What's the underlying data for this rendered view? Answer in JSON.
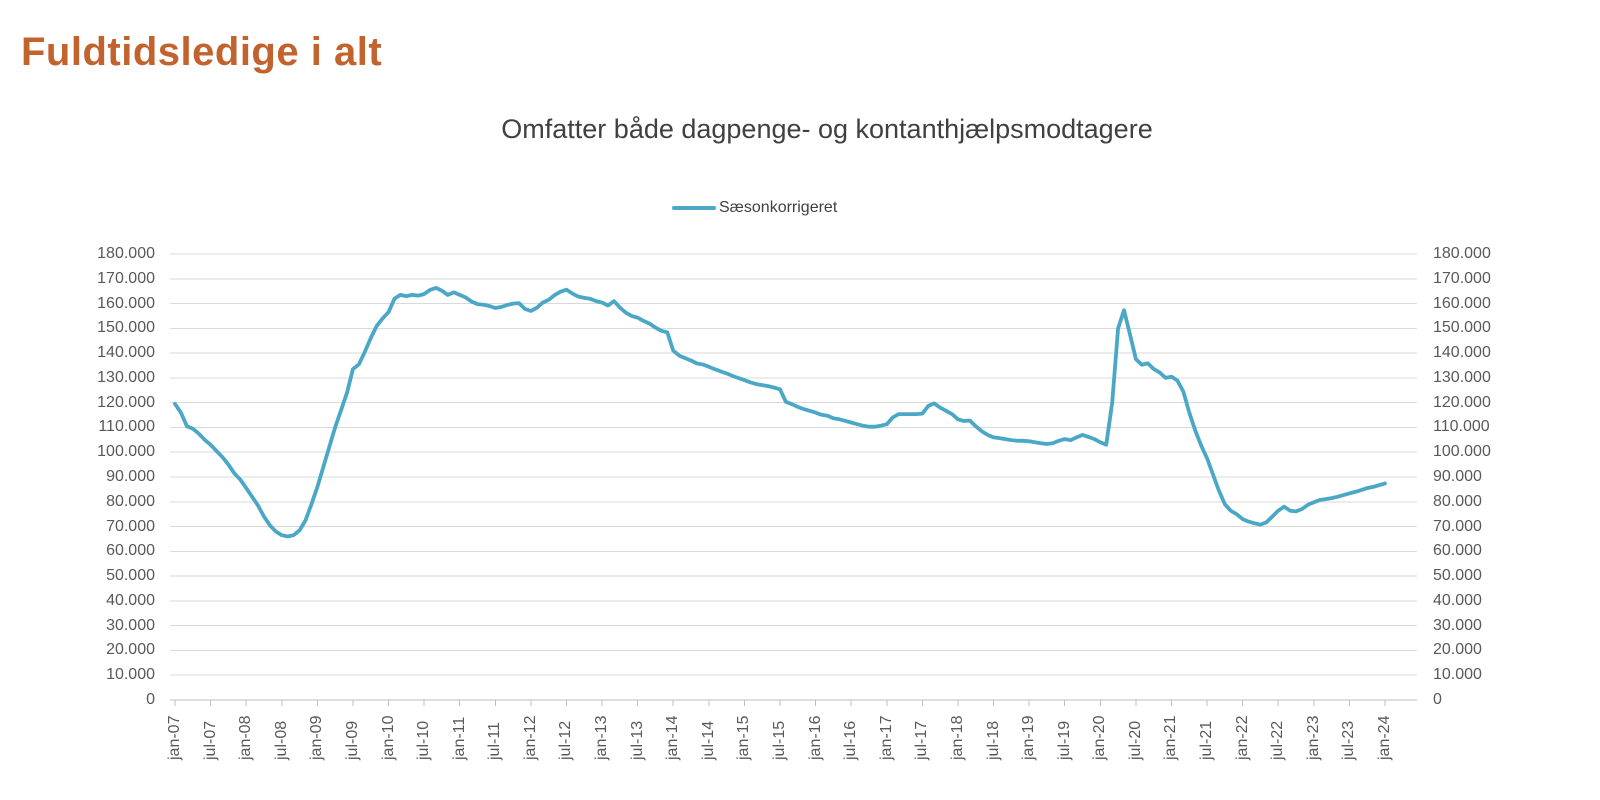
{
  "page": {
    "title": "Fuldtidsledige i alt"
  },
  "colors": {
    "title": "#C2632E",
    "subtitle": "#404040",
    "tick_label": "#595959",
    "grid": "#D9D9D9",
    "axis": "#BFBFBF",
    "series_line": "#4AA8C6"
  },
  "chart_data": {
    "type": "line",
    "title": "Omfatter både dagpenge- og kontanthjælpsmodtagere",
    "legend_position": "top-center",
    "grid": true,
    "ylim": [
      0,
      180000
    ],
    "y_step": 10000,
    "y_tick_labels_bottom_to_top": [
      "0",
      "10.000",
      "20.000",
      "30.000",
      "40.000",
      "50.000",
      "60.000",
      "70.000",
      "80.000",
      "90.000",
      "100.000",
      "110.000",
      "120.000",
      "130.000",
      "140.000",
      "150.000",
      "160.000",
      "170.000",
      "180.000"
    ],
    "x_start": "jan-07",
    "x_end": "jan-24",
    "x_tick_every_months": 6,
    "x_tick_labels": [
      "jan-07",
      "jul-07",
      "jan-08",
      "jul-08",
      "jan-09",
      "jul-09",
      "jan-10",
      "jul-10",
      "jan-11",
      "jul-11",
      "jan-12",
      "jul-12",
      "jan-13",
      "jul-13",
      "jan-14",
      "jul-14",
      "jan-15",
      "jul-15",
      "jan-16",
      "jul-16",
      "jan-17",
      "jul-17",
      "jan-18",
      "jul-18",
      "jan-19",
      "jul-19",
      "jan-20",
      "jul-20",
      "jan-21",
      "jul-21",
      "jan-22",
      "jul-22",
      "jan-23",
      "jul-23",
      "jan-24"
    ],
    "series": [
      {
        "name": "Sæsonkorrigeret",
        "color": "#4AA8C6",
        "values": [
          119500,
          116000,
          110500,
          109500,
          107500,
          105000,
          103000,
          100500,
          98000,
          95000,
          91500,
          89000,
          85500,
          82000,
          78500,
          74000,
          70500,
          68000,
          66500,
          66000,
          66500,
          68500,
          72500,
          79000,
          86000,
          94000,
          102000,
          110000,
          117000,
          124000,
          133500,
          135500,
          140500,
          146000,
          151000,
          154000,
          156500,
          162000,
          163500,
          163000,
          163500,
          163200,
          163800,
          165500,
          166300,
          165200,
          163500,
          164500,
          163500,
          162500,
          160800,
          159800,
          159500,
          159000,
          158200,
          158600,
          159400,
          160000,
          160200,
          157800,
          157000,
          158300,
          160400,
          161500,
          163400,
          164800,
          165600,
          164000,
          162800,
          162300,
          161900,
          161000,
          160400,
          159200,
          161000,
          158400,
          156300,
          155000,
          154300,
          153000,
          151900,
          150300,
          149000,
          148400,
          141000,
          139000,
          138000,
          137000,
          135800,
          135400,
          134500,
          133500,
          132600,
          131800,
          130800,
          129900,
          129100,
          128200,
          127500,
          127100,
          126700,
          126100,
          125400,
          120300,
          119400,
          118300,
          117400,
          116700,
          116000,
          115100,
          114700,
          113700,
          113300,
          112700,
          112000,
          111300,
          110700,
          110300,
          110300,
          110700,
          111300,
          114000,
          115400,
          115400,
          115400,
          115400,
          115600,
          118700,
          119700,
          118000,
          116700,
          115400,
          113300,
          112600,
          112800,
          110500,
          108500,
          107000,
          106000,
          105700,
          105300,
          104900,
          104600,
          104600,
          104400,
          104000,
          103600,
          103300,
          103600,
          104600,
          105300,
          104900,
          106000,
          107000,
          106200,
          105300,
          104000,
          103000,
          120000,
          150000,
          157300,
          147500,
          137600,
          135300,
          135900,
          133600,
          132200,
          130000,
          130500,
          128900,
          124500,
          116000,
          108800,
          102800,
          97500,
          91000,
          84500,
          79000,
          76400,
          75000,
          73000,
          72000,
          71300,
          70800,
          71700,
          74000,
          76400,
          78000,
          76400,
          76100,
          77100,
          78800,
          79800,
          80700,
          81100,
          81500,
          82000,
          82700,
          83400,
          84000,
          84700,
          85500,
          86000,
          86700,
          87400
        ]
      }
    ]
  }
}
